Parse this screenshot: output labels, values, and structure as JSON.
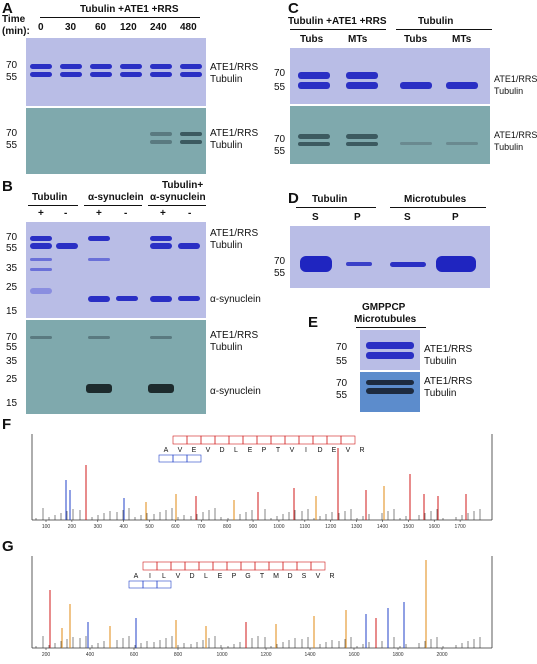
{
  "panels": {
    "A": {
      "letter": "A",
      "header": "Tubulin +ATE1 +RRS",
      "time_label": "Time",
      "min_label": "(min):",
      "times": [
        "0",
        "30",
        "60",
        "120",
        "240",
        "480"
      ],
      "mw_top": [
        "70",
        "55"
      ],
      "mw_bottom": [
        "70",
        "55"
      ],
      "labels": [
        "ATE1/RRS",
        "Tubulin"
      ]
    },
    "B": {
      "letter": "B",
      "groups": [
        "Tubulin",
        "α-synuclein",
        "Tubulin+",
        "α-synuclein"
      ],
      "signs": [
        "+",
        "-",
        "+",
        "-",
        "+",
        "-"
      ],
      "mw_top": [
        "70",
        "55",
        "35",
        "25",
        "15"
      ],
      "mw_bottom": [
        "70",
        "55",
        "35",
        "25",
        "15"
      ],
      "labels": [
        "ATE1/RRS",
        "Tubulin",
        "α-synuclein"
      ]
    },
    "C": {
      "letter": "C",
      "header_left": "Tubulin +ATE1 +RRS",
      "header_right": "Tubulin",
      "lanes": [
        "Tubs",
        "MTs",
        "Tubs",
        "MTs"
      ],
      "mw": [
        "70",
        "55"
      ],
      "labels": [
        "ATE1/RRS",
        "Tubulin"
      ]
    },
    "D": {
      "letter": "D",
      "header_left": "Tubulin",
      "header_right": "Microtubules",
      "lanes": [
        "S",
        "P",
        "S",
        "P"
      ],
      "mw": [
        "70",
        "55"
      ]
    },
    "E": {
      "letter": "E",
      "title_1": "GMPPCP",
      "title_2": "Microtubules",
      "mw": [
        "70",
        "55"
      ],
      "labels": [
        "ATE1/RRS",
        "Tubulin"
      ]
    },
    "F": {
      "letter": "F",
      "sequence": [
        "A",
        "V",
        "E",
        "V",
        "D",
        "L",
        "E",
        "P",
        "T",
        "V",
        "I",
        "D",
        "E",
        "V",
        "R"
      ],
      "x_ticks": [
        "100",
        "200",
        "300",
        "400",
        "500",
        "600",
        "700",
        "800",
        "900",
        "1000",
        "1100",
        "1200",
        "1300",
        "1400",
        "1500",
        "1600",
        "1700"
      ]
    },
    "G": {
      "letter": "G",
      "sequence": [
        "A",
        "I",
        "L",
        "V",
        "D",
        "L",
        "E",
        "P",
        "G",
        "T",
        "M",
        "D",
        "S",
        "V",
        "R"
      ],
      "x_ticks": [
        "200",
        "400",
        "600",
        "800",
        "1000",
        "1200",
        "1400",
        "1600",
        "1800",
        "2000"
      ]
    }
  },
  "colors": {
    "coomassie_bg": "#b9bde6",
    "coomassie_band": "#2a2fc4",
    "fluor_bg": "#7fa9ad",
    "fluor_band": "#1d2b2d",
    "y_ion": "#d01818",
    "b_ion": "#2040c8",
    "neutral_loss": "#e08a10"
  }
}
